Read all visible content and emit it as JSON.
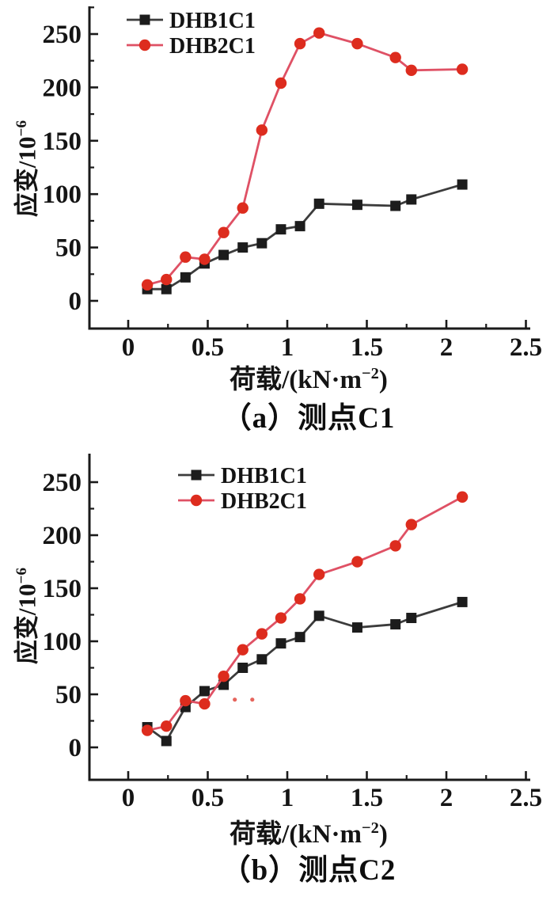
{
  "figure": {
    "background": "#ffffff",
    "axis_color": "#1a1a1a"
  },
  "chart_data": [
    {
      "type": "line",
      "panel_label": "（a）测点C1",
      "xlabel": {
        "pre": "荷载/(kN·m",
        "sup": "−2",
        "post": ")"
      },
      "ylabel": {
        "pre": "应变/10",
        "sup": "−6"
      },
      "xlim": [
        -0.25,
        2.55
      ],
      "ylim": [
        -26,
        276
      ],
      "grid": false,
      "legend_position": "top-left-inside",
      "x_major_ticks": [
        0,
        0.5,
        1,
        1.5,
        2,
        2.5
      ],
      "x_tick_labels": [
        "0",
        "0.5",
        "1",
        "1.5",
        "2",
        "2.5"
      ],
      "x_minor_ticks": [
        0.25,
        0.75,
        1.25,
        1.75,
        2.25
      ],
      "y_major_ticks": [
        0,
        50,
        100,
        150,
        200,
        250
      ],
      "y_tick_labels": [
        "0",
        "50",
        "100",
        "150",
        "200",
        "250"
      ],
      "y_minor_ticks": [
        25,
        75,
        125,
        175,
        225,
        275
      ],
      "x": [
        0.12,
        0.24,
        0.36,
        0.48,
        0.6,
        0.72,
        0.84,
        0.96,
        1.08,
        1.2,
        1.44,
        1.68,
        1.78,
        2.1
      ],
      "series": [
        {
          "name": "DHB1C1",
          "marker": "square",
          "marker_color": "#1c1c1c",
          "line_color": "#3c3c3c",
          "values": [
            11,
            11,
            22,
            35,
            43,
            50,
            54,
            67,
            70,
            91,
            90,
            89,
            95,
            109
          ]
        },
        {
          "name": "DHB2C1",
          "marker": "circle",
          "marker_color": "#dd2c1e",
          "line_color": "#df5165",
          "values": [
            15,
            20,
            41,
            39,
            64,
            87,
            160,
            204,
            241,
            251,
            241,
            228,
            216,
            217
          ]
        }
      ],
      "artifact_dots": []
    },
    {
      "type": "line",
      "panel_label": "（b）测点C2",
      "xlabel": {
        "pre": "荷载/(kN·m",
        "sup": "−2",
        "post": ")"
      },
      "ylabel": {
        "pre": "应变/10",
        "sup": "−6"
      },
      "xlim": [
        -0.25,
        2.55
      ],
      "ylim": [
        -30,
        272
      ],
      "grid": false,
      "legend_position": "top-left-inside",
      "x_major_ticks": [
        0,
        0.5,
        1,
        1.5,
        2,
        2.5
      ],
      "x_tick_labels": [
        "0",
        "0.5",
        "1",
        "1.5",
        "2",
        "2.5"
      ],
      "x_minor_ticks": [
        0.25,
        0.75,
        1.25,
        1.75,
        2.25
      ],
      "y_major_ticks": [
        0,
        50,
        100,
        150,
        200,
        250
      ],
      "y_tick_labels": [
        "0",
        "50",
        "100",
        "150",
        "200",
        "250"
      ],
      "y_minor_ticks": [
        25,
        75,
        125,
        175,
        225
      ],
      "x": [
        0.12,
        0.24,
        0.36,
        0.48,
        0.6,
        0.72,
        0.84,
        0.96,
        1.08,
        1.2,
        1.44,
        1.68,
        1.78,
        2.1
      ],
      "series": [
        {
          "name": "DHB1C1",
          "marker": "square",
          "marker_color": "#1c1c1c",
          "line_color": "#3c3c3c",
          "values": [
            19,
            6,
            38,
            53,
            59,
            75,
            83,
            98,
            104,
            124,
            113,
            116,
            122,
            137
          ]
        },
        {
          "name": "DHB2C1",
          "marker": "circle",
          "marker_color": "#dd2c1e",
          "line_color": "#df5165",
          "values": [
            16,
            20,
            44,
            41,
            67,
            92,
            107,
            122,
            140,
            163,
            175,
            190,
            210,
            236
          ]
        }
      ],
      "artifact_dots": [
        {
          "x": 0.67,
          "y": 45
        },
        {
          "x": 0.78,
          "y": 45
        }
      ]
    }
  ]
}
